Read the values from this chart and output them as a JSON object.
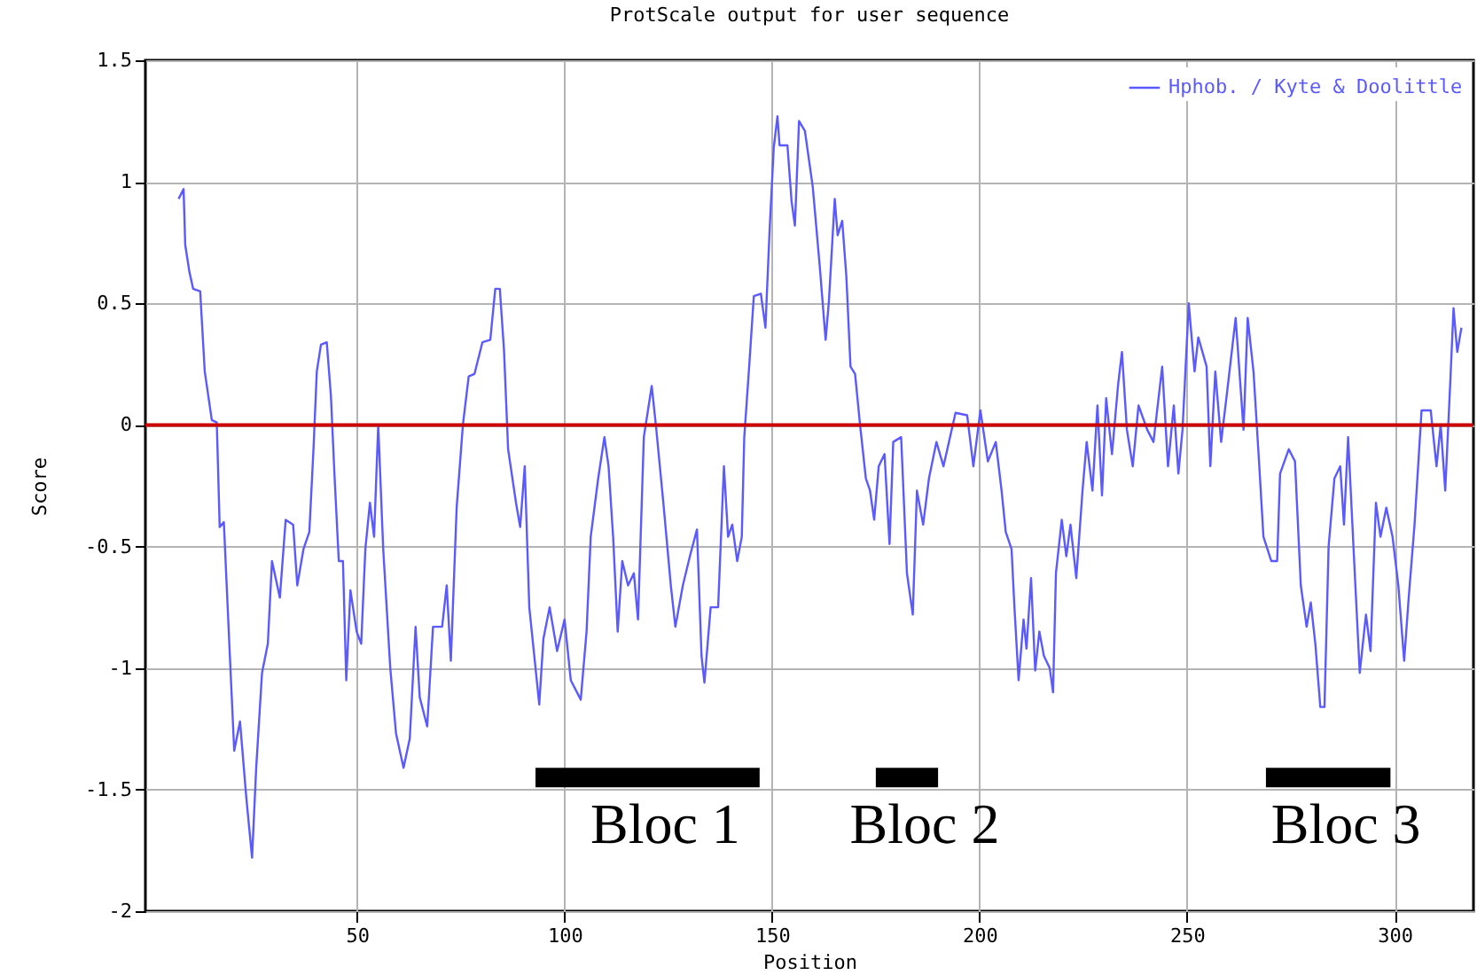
{
  "chart_data": {
    "type": "line",
    "title": "ProtScale output for user sequence",
    "xlabel": "Position",
    "ylabel": "Score",
    "xlim": [
      -1,
      319
    ],
    "xticks": [
      50,
      100,
      150,
      200,
      250,
      300
    ],
    "ylim": [
      -2,
      1.5
    ],
    "yticks": [
      -2,
      -1.5,
      -1,
      -0.5,
      0,
      0.5,
      1,
      1.5
    ],
    "grid": true,
    "legend": "top right",
    "ref_lines": [
      {
        "axis": "y",
        "value": 0,
        "color": "#cc0000"
      }
    ],
    "annotations": [
      "Bloc 1",
      "Bloc 2",
      "Bloc 3"
    ],
    "series": [
      {
        "color": "#000000",
        "x": [
          93,
          147
        ],
        "values": [
          -1.45,
          -1.45
        ]
      },
      {
        "color": "#000000",
        "x": [
          175,
          190
        ],
        "values": [
          -1.45,
          -1.45
        ]
      },
      {
        "color": "#000000",
        "x": [
          269,
          299
        ],
        "values": [
          -1.45,
          -1.45
        ]
      },
      {
        "name": "Hphob. / Kyte & Doolittle",
        "color": "#5a5aff",
        "x": [
          7,
          8.2,
          8.6,
          9.6,
          10.5,
          12.2,
          13.3,
          15,
          16.2,
          16.9,
          17.9,
          19.3,
          20.4,
          21.8,
          23.3,
          24.7,
          25.7,
          27.1,
          28.5,
          29.5,
          31.4,
          32.8,
          34.6,
          35.6,
          37.1,
          38.5,
          39.5,
          40.3,
          41.3,
          42.7,
          43.7,
          44.6,
          45.6,
          46.6,
          47.4,
          48.4,
          49.9,
          51,
          52,
          53.1,
          54.1,
          55.1,
          56.3,
          58,
          59.4,
          61.2,
          62.7,
          64.1,
          65.1,
          66.9,
          68.3,
          70.5,
          71.6,
          72.6,
          74,
          75.5,
          76.9,
          78.3,
          80.2,
          82.1,
          83.3,
          84.4,
          85.4,
          86.4,
          88.3,
          89.3,
          90.4,
          91.5,
          93,
          93.9,
          94.9,
          96.4,
          98.2,
          100,
          101.5,
          103.9,
          105.3,
          106.3,
          108.1,
          109.6,
          110.6,
          111.7,
          112.8,
          113.9,
          115.3,
          116.7,
          117.7,
          119.1,
          121,
          122,
          123.8,
          125.6,
          126.7,
          128.5,
          130.2,
          131.9,
          133,
          133.7,
          135.2,
          137,
          138.4,
          139.4,
          140.4,
          141.6,
          142.7,
          143.3,
          144.4,
          145.6,
          147.3,
          148.4,
          149.4,
          150.4,
          151.3,
          151.8,
          153.7,
          154.7,
          155.5,
          156.5,
          157.9,
          159.8,
          161.5,
          162.9,
          163.7,
          165.1,
          165.8,
          166.9,
          167.9,
          168.9,
          170,
          171.2,
          172.6,
          173.6,
          174.6,
          175.7,
          177.1,
          178.3,
          179.2,
          181.1,
          182.5,
          183.9,
          184.9,
          186.4,
          187.8,
          189.6,
          191.3,
          194.2,
          197,
          198.5,
          200.2,
          202,
          203.9,
          205.3,
          206.3,
          207.7,
          208.4,
          209.4,
          210.6,
          211.3,
          212.4,
          213.4,
          214.4,
          215.5,
          216.9,
          217.7,
          218.4,
          219.8,
          220.9,
          221.9,
          223.3,
          224.8,
          225.8,
          227.2,
          228.4,
          229.5,
          230.5,
          231.9,
          233.4,
          234.3,
          235.5,
          236.9,
          238.3,
          240.4,
          241.9,
          244,
          245.4,
          246.8,
          247.9,
          248.9,
          250.4,
          251.8,
          252.7,
          254.7,
          255.6,
          256.8,
          258.2,
          259.6,
          261.7,
          263.6,
          264.6,
          266,
          267.4,
          268.4,
          270.3,
          271.7,
          272.4,
          274.5,
          276,
          277.4,
          278.8,
          279.8,
          280.9,
          282.1,
          283.1,
          284.1,
          285.5,
          286.9,
          287.8,
          288.8,
          290.2,
          291.6,
          293.1,
          294.2,
          295.5,
          296.6,
          298,
          299.5,
          300.9,
          302.3,
          303.4,
          304.8,
          306.5,
          308.7,
          310.1,
          311.1,
          312.2,
          313.4,
          314.2,
          315.1,
          316.1
        ],
        "values": [
          0.93,
          0.97,
          0.74,
          0.63,
          0.56,
          0.55,
          0.22,
          0.02,
          0.01,
          -0.42,
          -0.4,
          -0.93,
          -1.34,
          -1.22,
          -1.53,
          -1.78,
          -1.41,
          -1.02,
          -0.9,
          -0.56,
          -0.71,
          -0.39,
          -0.41,
          -0.66,
          -0.51,
          -0.44,
          -0.1,
          0.22,
          0.33,
          0.34,
          0.12,
          -0.22,
          -0.56,
          -0.56,
          -1.05,
          -0.68,
          -0.85,
          -0.9,
          -0.51,
          -0.32,
          -0.46,
          0.0,
          -0.51,
          -1.0,
          -1.27,
          -1.41,
          -1.29,
          -0.83,
          -1.12,
          -1.24,
          -0.83,
          -0.83,
          -0.66,
          -0.97,
          -0.34,
          0.0,
          0.2,
          0.21,
          0.34,
          0.35,
          0.56,
          0.56,
          0.31,
          -0.1,
          -0.32,
          -0.42,
          -0.17,
          -0.75,
          -1.0,
          -1.15,
          -0.88,
          -0.75,
          -0.93,
          -0.8,
          -1.05,
          -1.13,
          -0.85,
          -0.46,
          -0.22,
          -0.05,
          -0.17,
          -0.46,
          -0.85,
          -0.56,
          -0.66,
          -0.61,
          -0.8,
          -0.05,
          0.16,
          0.0,
          -0.32,
          -0.66,
          -0.83,
          -0.66,
          -0.54,
          -0.43,
          -0.95,
          -1.06,
          -0.75,
          -0.75,
          -0.17,
          -0.46,
          -0.41,
          -0.56,
          -0.46,
          -0.05,
          0.22,
          0.53,
          0.54,
          0.4,
          0.8,
          1.14,
          1.27,
          1.15,
          1.15,
          0.92,
          0.82,
          1.25,
          1.21,
          0.98,
          0.65,
          0.35,
          0.51,
          0.93,
          0.78,
          0.84,
          0.61,
          0.24,
          0.21,
          0.0,
          -0.22,
          -0.27,
          -0.39,
          -0.17,
          -0.12,
          -0.49,
          -0.07,
          -0.05,
          -0.61,
          -0.78,
          -0.27,
          -0.41,
          -0.22,
          -0.07,
          -0.17,
          0.05,
          0.04,
          -0.17,
          0.06,
          -0.15,
          -0.07,
          -0.27,
          -0.44,
          -0.51,
          -0.75,
          -1.05,
          -0.8,
          -0.92,
          -0.63,
          -1.01,
          -0.85,
          -0.95,
          -1.0,
          -1.1,
          -0.61,
          -0.39,
          -0.54,
          -0.41,
          -0.63,
          -0.27,
          -0.07,
          -0.27,
          0.08,
          -0.29,
          0.11,
          -0.12,
          0.17,
          0.3,
          -0.02,
          -0.17,
          0.08,
          -0.02,
          -0.07,
          0.24,
          -0.17,
          0.08,
          -0.2,
          -0.02,
          0.5,
          0.22,
          0.36,
          0.24,
          -0.17,
          0.22,
          -0.07,
          0.13,
          0.44,
          -0.02,
          0.44,
          0.22,
          -0.17,
          -0.46,
          -0.56,
          -0.56,
          -0.2,
          -0.1,
          -0.15,
          -0.66,
          -0.83,
          -0.73,
          -0.9,
          -1.16,
          -1.16,
          -0.5,
          -0.22,
          -0.17,
          -0.41,
          -0.05,
          -0.54,
          -1.02,
          -0.78,
          -0.93,
          -0.32,
          -0.46,
          -0.34,
          -0.46,
          -0.66,
          -0.97,
          -0.71,
          -0.41,
          0.06,
          0.06,
          -0.17,
          0.0,
          -0.27,
          0.17,
          0.48,
          0.3,
          0.4
        ]
      }
    ]
  }
}
